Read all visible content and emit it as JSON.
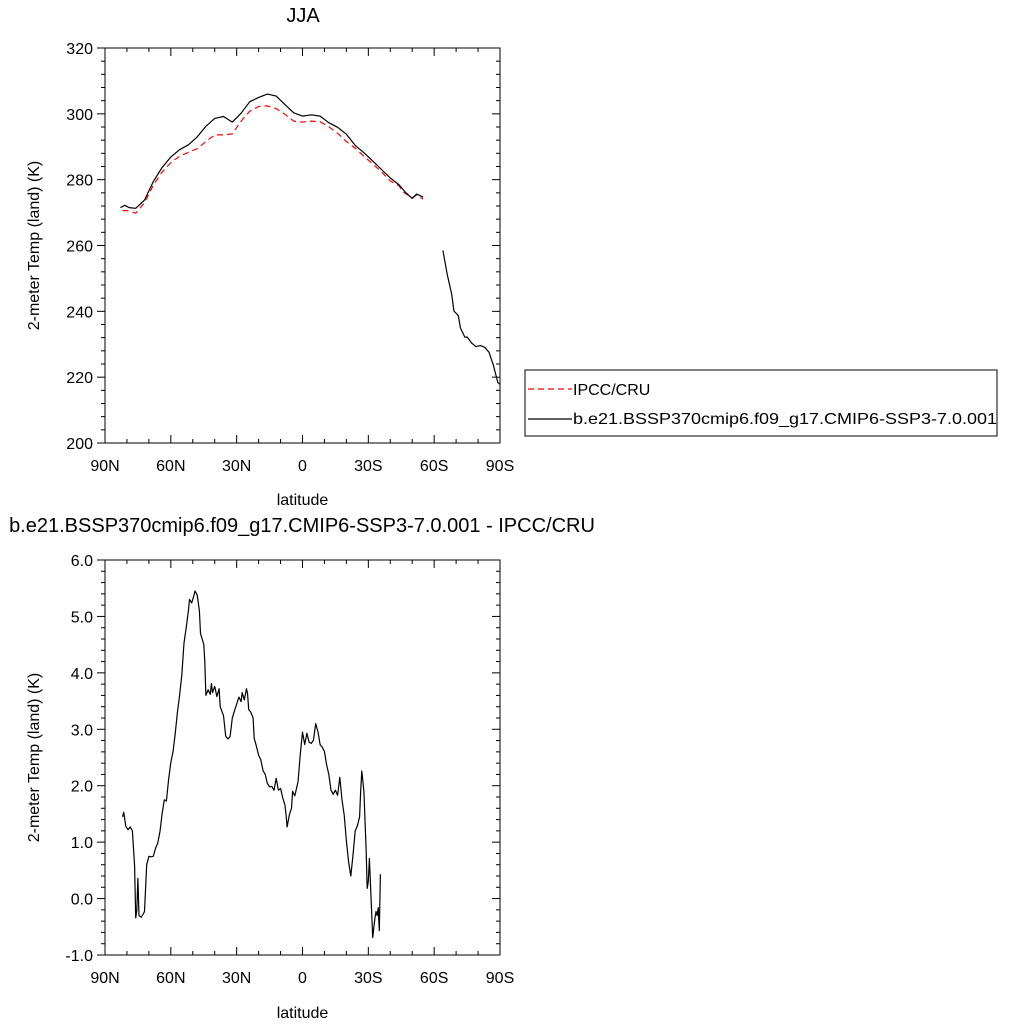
{
  "chart_data": [
    {
      "type": "line",
      "title": "JJA",
      "xlabel": "latitude",
      "ylabel": "2-meter Temp (land) (K)",
      "xlim": [
        90,
        -90
      ],
      "ylim": [
        200,
        320
      ],
      "x_ticks": [
        90,
        60,
        30,
        0,
        -30,
        -60,
        -90
      ],
      "x_tick_labels": [
        "90N",
        "60N",
        "30N",
        "0",
        "30S",
        "60S",
        "90S"
      ],
      "y_ticks": [
        200,
        220,
        240,
        260,
        280,
        300,
        320
      ],
      "y_tick_labels": [
        "200",
        "220",
        "240",
        "260",
        "280",
        "300",
        "320"
      ],
      "legend_position": "right",
      "series": [
        {
          "name": "IPCC/CRU",
          "color": "#ff0000",
          "dash": "dashed",
          "segments": [
            [
              [
                82,
                270.6
              ],
              [
                80,
                270.6
              ],
              [
                76,
                269.8
              ],
              [
                72,
                273
              ],
              [
                68,
                278.3
              ],
              [
                64,
                282.3
              ],
              [
                60,
                285.2
              ],
              [
                56,
                287.1
              ],
              [
                52,
                288.3
              ],
              [
                48,
                289.4
              ],
              [
                44,
                291.6
              ],
              [
                40,
                293.6
              ],
              [
                36,
                293.6
              ],
              [
                32,
                293.9
              ],
              [
                28,
                297.8
              ],
              [
                24,
                300.8
              ],
              [
                20,
                302.2
              ],
              [
                16,
                302.4
              ],
              [
                12,
                301.6
              ],
              [
                8,
                299.9
              ],
              [
                4,
                297.8
              ],
              [
                0,
                297.5
              ],
              [
                -4,
                297.8
              ],
              [
                -8,
                297.6
              ],
              [
                -12,
                296.1
              ],
              [
                -16,
                294.1
              ],
              [
                -20,
                291.6
              ],
              [
                -24,
                289.6
              ],
              [
                -28,
                287.1
              ],
              [
                -32,
                284.8
              ],
              [
                -36,
                282.4
              ],
              [
                -40,
                279.6
              ],
              [
                -44,
                278.1
              ],
              [
                -46,
                276.2
              ],
              [
                -50,
                274.5
              ],
              [
                -52,
                275.3
              ],
              [
                -55,
                274.1
              ]
            ]
          ]
        },
        {
          "name": "b.e21.BSSP370cmip6.f09_g17.CMIP6-SSP3-7.0.001",
          "color": "#000000",
          "dash": "solid",
          "segments": [
            [
              [
                83,
                271.5
              ],
              [
                81,
                272.2
              ],
              [
                79,
                271.5
              ],
              [
                76,
                271.3
              ],
              [
                72,
                273.8
              ],
              [
                68,
                279.4
              ],
              [
                64,
                283.7
              ],
              [
                60,
                286.9
              ],
              [
                56,
                289.1
              ],
              [
                52,
                290.6
              ],
              [
                48,
                293
              ],
              [
                44,
                296.2
              ],
              [
                40,
                298.6
              ],
              [
                36,
                299.2
              ],
              [
                32,
                297.5
              ],
              [
                28,
                300.2
              ],
              [
                24,
                303.7
              ],
              [
                20,
                305
              ],
              [
                16,
                306
              ],
              [
                12,
                305.4
              ],
              [
                8,
                302.8
              ],
              [
                4,
                300.3
              ],
              [
                0,
                299.3
              ],
              [
                -4,
                299.7
              ],
              [
                -8,
                299.3
              ],
              [
                -12,
                297.3
              ],
              [
                -16,
                295.9
              ],
              [
                -20,
                293.8
              ],
              [
                -24,
                290.4
              ],
              [
                -28,
                288.2
              ],
              [
                -32,
                285.7
              ],
              [
                -36,
                283.1
              ],
              [
                -40,
                280.5
              ],
              [
                -44,
                278.4
              ],
              [
                -47,
                276.1
              ],
              [
                -50,
                274.3
              ],
              [
                -52,
                275.6
              ],
              [
                -55,
                274.7
              ]
            ],
            [
              [
                -64,
                258.5
              ],
              [
                -66,
                251.1
              ],
              [
                -68,
                245.2
              ],
              [
                -69,
                240.1
              ],
              [
                -71,
                238.7
              ],
              [
                -72,
                234.9
              ],
              [
                -74,
                232.1
              ],
              [
                -75,
                232.2
              ],
              [
                -77,
                230.4
              ],
              [
                -79,
                229.3
              ],
              [
                -81,
                229.6
              ],
              [
                -83,
                229.1
              ],
              [
                -85,
                227.6
              ],
              [
                -87,
                223.6
              ],
              [
                -89,
                218.4
              ],
              [
                -90,
                217.8
              ]
            ]
          ]
        }
      ]
    },
    {
      "type": "line",
      "title": "b.e21.BSSP370cmip6.f09_g17.CMIP6-SSP3-7.0.001 - IPCC/CRU",
      "xlabel": "latitude",
      "ylabel": "2-meter Temp (land) (K)",
      "xlim": [
        90,
        -90
      ],
      "ylim": [
        -1.0,
        6.0
      ],
      "x_ticks": [
        90,
        60,
        30,
        0,
        -30,
        -60,
        -90
      ],
      "x_tick_labels": [
        "90N",
        "60N",
        "30N",
        "0",
        "30S",
        "60S",
        "90S"
      ],
      "y_ticks": [
        -1,
        0,
        1,
        2,
        3,
        4,
        5,
        6
      ],
      "y_tick_labels": [
        "-1.0",
        "0.0",
        "1.0",
        "2.0",
        "3.0",
        "4.0",
        "5.0",
        "6.0"
      ],
      "series": [
        {
          "color": "#000000",
          "dash": "solid",
          "segments": [
            [
              [
                82,
                1.45
              ],
              [
                81.5,
                1.53
              ],
              [
                80.5,
                1.28
              ],
              [
                79.5,
                1.22
              ],
              [
                78.5,
                1.27
              ],
              [
                77.5,
                1.2
              ],
              [
                76.5,
                0.58
              ],
              [
                76,
                -0.34
              ],
              [
                75.5,
                -0.21
              ],
              [
                75,
                0.36
              ],
              [
                74.5,
                -0.3
              ],
              [
                73.5,
                -0.33
              ],
              [
                72.5,
                -0.27
              ],
              [
                72,
                -0.23
              ],
              [
                71,
                0.6
              ],
              [
                70,
                0.75
              ],
              [
                69,
                0.74
              ],
              [
                68,
                0.75
              ],
              [
                67,
                0.89
              ],
              [
                66,
                0.98
              ],
              [
                65,
                1.18
              ],
              [
                64,
                1.5
              ],
              [
                63,
                1.75
              ],
              [
                62,
                1.73
              ],
              [
                61,
                2.11
              ],
              [
                60,
                2.41
              ],
              [
                59,
                2.6
              ],
              [
                58,
                2.92
              ],
              [
                57,
                3.3
              ],
              [
                56,
                3.6
              ],
              [
                55,
                3.96
              ],
              [
                54,
                4.53
              ],
              [
                53,
                4.8
              ],
              [
                52,
                5.1
              ],
              [
                51.5,
                5.3
              ],
              [
                50.5,
                5.24
              ],
              [
                49.5,
                5.37
              ],
              [
                49,
                5.45
              ],
              [
                48,
                5.38
              ],
              [
                47,
                5.1
              ],
              [
                46.5,
                4.7
              ],
              [
                45,
                4.5
              ],
              [
                44.5,
                4.2
              ],
              [
                44,
                3.6
              ],
              [
                43,
                3.7
              ],
              [
                42,
                3.62
              ],
              [
                41.5,
                3.81
              ],
              [
                41,
                3.65
              ],
              [
                40,
                3.76
              ],
              [
                39,
                3.58
              ],
              [
                38,
                3.72
              ],
              [
                37.5,
                3.4
              ],
              [
                36,
                3.24
              ],
              [
                35,
                2.88
              ],
              [
                34,
                2.83
              ],
              [
                33,
                2.87
              ],
              [
                32,
                3.2
              ],
              [
                31,
                3.33
              ],
              [
                30,
                3.45
              ],
              [
                29,
                3.57
              ],
              [
                28,
                3.49
              ],
              [
                27.5,
                3.65
              ],
              [
                26.5,
                3.52
              ],
              [
                25.5,
                3.72
              ],
              [
                25,
                3.62
              ],
              [
                24.5,
                3.35
              ],
              [
                23.5,
                3.3
              ],
              [
                22.5,
                3.2
              ],
              [
                22,
                2.84
              ],
              [
                21,
                2.7
              ],
              [
                20,
                2.54
              ],
              [
                19,
                2.46
              ],
              [
                18,
                2.27
              ],
              [
                17,
                2.2
              ],
              [
                16,
                2.04
              ],
              [
                15,
                1.98
              ],
              [
                14,
                1.99
              ],
              [
                13,
                1.92
              ],
              [
                12,
                2.13
              ],
              [
                11,
                1.92
              ],
              [
                10,
                1.95
              ],
              [
                9,
                1.78
              ],
              [
                8,
                1.66
              ],
              [
                7.5,
                1.5
              ],
              [
                7,
                1.27
              ],
              [
                6,
                1.48
              ],
              [
                5,
                1.6
              ],
              [
                4.5,
                1.9
              ],
              [
                3.5,
                1.82
              ],
              [
                2,
                2.08
              ],
              [
                1,
                2.56
              ],
              [
                0,
                2.95
              ],
              [
                -1,
                2.73
              ],
              [
                -2,
                2.93
              ],
              [
                -3,
                2.77
              ],
              [
                -4,
                2.75
              ],
              [
                -5,
                2.81
              ],
              [
                -6,
                3.1
              ],
              [
                -7,
                2.96
              ],
              [
                -8,
                2.73
              ],
              [
                -9,
                2.68
              ],
              [
                -10,
                2.61
              ],
              [
                -11,
                2.37
              ],
              [
                -12,
                2.2
              ],
              [
                -13,
                1.92
              ],
              [
                -14,
                1.85
              ],
              [
                -15,
                1.92
              ],
              [
                -16,
                1.83
              ],
              [
                -17,
                2.15
              ],
              [
                -18,
                1.75
              ],
              [
                -19,
                1.48
              ],
              [
                -20,
                1.02
              ],
              [
                -21,
                0.65
              ],
              [
                -22,
                0.4
              ],
              [
                -23,
                0.77
              ],
              [
                -24,
                1.2
              ],
              [
                -25,
                1.29
              ],
              [
                -26,
                1.45
              ],
              [
                -26.5,
                1.92
              ],
              [
                -27,
                2.26
              ],
              [
                -28,
                1.9
              ],
              [
                -29,
                0.88
              ],
              [
                -29.5,
                0.18
              ],
              [
                -30,
                0.3
              ],
              [
                -30.5,
                0.71
              ],
              [
                -31.5,
                -0.22
              ],
              [
                -32,
                -0.69
              ],
              [
                -33,
                -0.35
              ],
              [
                -33.5,
                -0.23
              ],
              [
                -34,
                -0.3
              ],
              [
                -34.5,
                -0.16
              ],
              [
                -35,
                -0.57
              ],
              [
                -35.5,
                0.43
              ]
            ]
          ]
        }
      ]
    }
  ]
}
